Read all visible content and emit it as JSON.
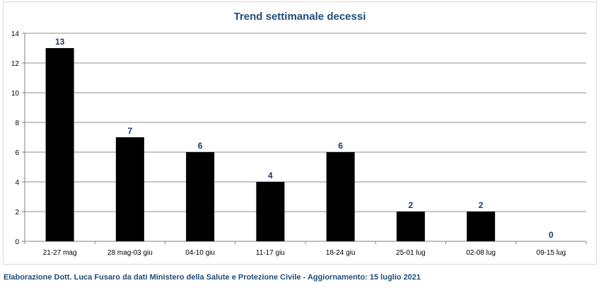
{
  "chart_data": {
    "type": "bar",
    "title": "Trend settimanale decessi",
    "xlabel": "",
    "ylabel": "",
    "categories": [
      "21-27 mag",
      "28 mag-03 giu",
      "04-10 giu",
      "11-17 giu",
      "18-24 giu",
      "25-01 lug",
      "02-08 lug",
      "09-15 lug"
    ],
    "values": [
      13,
      7,
      6,
      4,
      6,
      2,
      2,
      0
    ],
    "ylim": [
      0,
      14
    ],
    "yticks": [
      0,
      2,
      4,
      6,
      8,
      10,
      12,
      14
    ],
    "grid": true,
    "legend": "none",
    "bar_color": "#000000",
    "title_color": "#1f4e79",
    "label_color": "#1f3864"
  },
  "footer": "Elaborazione Dott. Luca Fusaro da dati Ministero della Salute e Protezione Civile - Aggiornamento: 15 luglio 2021"
}
